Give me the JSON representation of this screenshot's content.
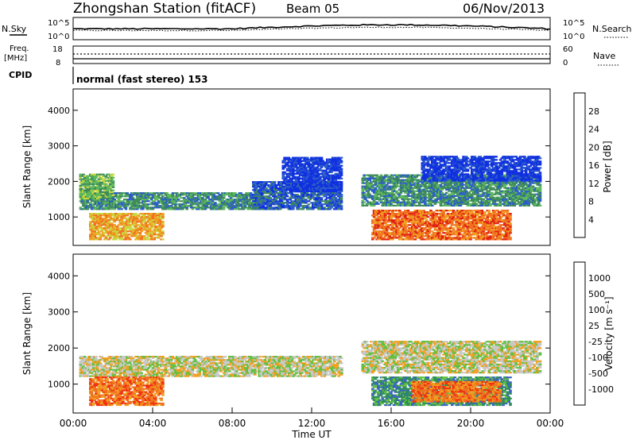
{
  "header": {
    "station": "Zhongshan Station (fitACF)",
    "beam": "Beam 05",
    "date": "06/Nov/2013"
  },
  "top_panels": {
    "nsky_label": "N.Sky",
    "nsearch_label": "N.Search",
    "noise_ticks_left": [
      "10^5",
      "10^0"
    ],
    "noise_ticks_right": [
      "10^5",
      "10^0"
    ],
    "freq_label_line1": "Freq.",
    "freq_label_line2": "[MHz]",
    "freq_ticks": [
      "18",
      "8"
    ],
    "nave_label": "Nave",
    "nave_ticks": [
      "60",
      "0"
    ],
    "cpid_label": "CPID",
    "cpid_value": "normal (fast stereo) 153"
  },
  "chart_data": [
    {
      "type": "heatmap",
      "title": "",
      "xlabel": "",
      "ylabel": "Slant Range [km]",
      "xlim": [
        "00:00",
        "24:00"
      ],
      "ylim": [
        200,
        4600
      ],
      "yticks": [
        "1000",
        "2000",
        "3000",
        "4000"
      ],
      "colorbar": {
        "label": "Power [dB]",
        "ticks": [
          "4",
          "8",
          "12",
          "16",
          "20",
          "24",
          "28"
        ],
        "colors": [
          "#1030e0",
          "#2a5cc8",
          "#3e8a5a",
          "#5cb85c",
          "#c8d840",
          "#f0a020",
          "#f07020",
          "#e02010"
        ]
      },
      "regions": [
        {
          "t0": 0.3,
          "t1": 9.5,
          "r0": 1200,
          "r1": 1700,
          "level": 2,
          "note": "1200-1700 km band 00-10 UT"
        },
        {
          "t0": 0.3,
          "t1": 2.0,
          "r0": 1500,
          "r1": 2200,
          "level": 3
        },
        {
          "t0": 0.8,
          "t1": 4.5,
          "r0": 350,
          "r1": 1100,
          "level": 5
        },
        {
          "t0": 9.0,
          "t1": 13.5,
          "r0": 1200,
          "r1": 2000,
          "level": 1
        },
        {
          "t0": 10.5,
          "t1": 13.5,
          "r0": 1700,
          "r1": 2700,
          "level": 0
        },
        {
          "t0": 14.5,
          "t1": 23.5,
          "r0": 1300,
          "r1": 2200,
          "level": 2
        },
        {
          "t0": 15.0,
          "t1": 22.0,
          "r0": 350,
          "r1": 1200,
          "level": 6
        },
        {
          "t0": 17.5,
          "t1": 23.5,
          "r0": 2000,
          "r1": 2700,
          "level": 0
        }
      ]
    },
    {
      "type": "heatmap",
      "title": "",
      "xlabel": "Time UT",
      "ylabel": "Slant Range [km]",
      "xlim": [
        "00:00",
        "24:00"
      ],
      "xticks": [
        "00:00",
        "04:00",
        "08:00",
        "12:00",
        "16:00",
        "20:00",
        "00:00"
      ],
      "ylim": [
        200,
        4600
      ],
      "yticks": [
        "1000",
        "2000",
        "3000",
        "4000"
      ],
      "colorbar": {
        "label": "Velocity [m s⁻¹]",
        "ticks": [
          "1000",
          "500",
          "100",
          "25",
          "-25",
          "-100",
          "-500",
          "-1000"
        ],
        "colors": [
          "#1030d0",
          "#3a60c8",
          "#2e8c5a",
          "#60c040",
          "#c8c8c8",
          "#f0a020",
          "#f07020",
          "#f03010",
          "#e00000"
        ]
      },
      "regions": [
        {
          "t0": 0.3,
          "t1": 13.5,
          "r0": 1200,
          "r1": 1800,
          "level": 4,
          "note": "grey ground scatter band"
        },
        {
          "t0": 14.5,
          "t1": 23.5,
          "r0": 1300,
          "r1": 2200,
          "level": 4
        },
        {
          "t0": 0.8,
          "t1": 4.5,
          "r0": 400,
          "r1": 1200,
          "level": 6
        },
        {
          "t0": 15.0,
          "t1": 22.0,
          "r0": 400,
          "r1": 1200,
          "level": 2
        },
        {
          "t0": 17.0,
          "t1": 21.5,
          "r0": 500,
          "r1": 1100,
          "level": 6
        }
      ]
    }
  ]
}
